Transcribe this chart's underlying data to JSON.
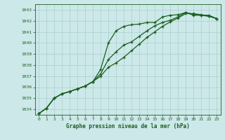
{
  "bg_color": "#cce8e8",
  "grid_color": "#aacfcf",
  "line_color": "#1a5e20",
  "xlabel": "Graphe pression niveau de la mer (hPa)",
  "xlim": [
    -0.5,
    23.5
  ],
  "ylim": [
    1033.5,
    1043.5
  ],
  "yticks": [
    1034,
    1035,
    1036,
    1037,
    1038,
    1039,
    1040,
    1041,
    1042,
    1043
  ],
  "xticks": [
    0,
    1,
    2,
    3,
    4,
    5,
    6,
    7,
    8,
    9,
    10,
    11,
    12,
    13,
    14,
    15,
    16,
    17,
    18,
    19,
    20,
    21,
    22,
    23
  ],
  "line1_x": [
    0,
    1,
    2,
    3,
    4,
    5,
    6,
    7,
    8,
    9,
    10,
    11,
    12,
    13,
    14,
    15,
    16,
    17,
    18,
    19,
    20,
    21,
    22,
    23
  ],
  "line1_y": [
    1033.6,
    1034.1,
    1035.0,
    1035.4,
    1035.6,
    1035.85,
    1036.1,
    1036.5,
    1037.6,
    1040.0,
    1041.1,
    1041.5,
    1041.65,
    1041.7,
    1041.85,
    1041.85,
    1042.35,
    1042.5,
    1042.55,
    1042.75,
    1042.5,
    1042.5,
    1042.5,
    1042.2
  ],
  "line2_x": [
    0,
    1,
    2,
    3,
    4,
    5,
    6,
    7,
    8,
    9,
    10,
    11,
    12,
    13,
    14,
    15,
    16,
    17,
    18,
    19,
    20,
    21,
    22,
    23
  ],
  "line2_y": [
    1033.6,
    1034.1,
    1035.0,
    1035.4,
    1035.6,
    1035.85,
    1036.1,
    1036.5,
    1037.2,
    1038.5,
    1039.2,
    1039.8,
    1040.1,
    1040.6,
    1041.1,
    1041.55,
    1041.85,
    1042.05,
    1042.35,
    1042.75,
    1042.6,
    1042.5,
    1042.4,
    1042.2
  ],
  "line3_x": [
    0,
    1,
    2,
    3,
    4,
    5,
    6,
    7,
    8,
    9,
    10,
    11,
    12,
    13,
    14,
    15,
    16,
    17,
    18,
    19,
    20,
    21,
    22,
    23
  ],
  "line3_y": [
    1033.6,
    1034.1,
    1035.0,
    1035.4,
    1035.6,
    1035.85,
    1036.1,
    1036.5,
    1037.0,
    1037.8,
    1038.2,
    1038.7,
    1039.3,
    1039.9,
    1040.5,
    1041.0,
    1041.5,
    1041.9,
    1042.25,
    1042.65,
    1042.65,
    1042.55,
    1042.45,
    1042.2
  ]
}
